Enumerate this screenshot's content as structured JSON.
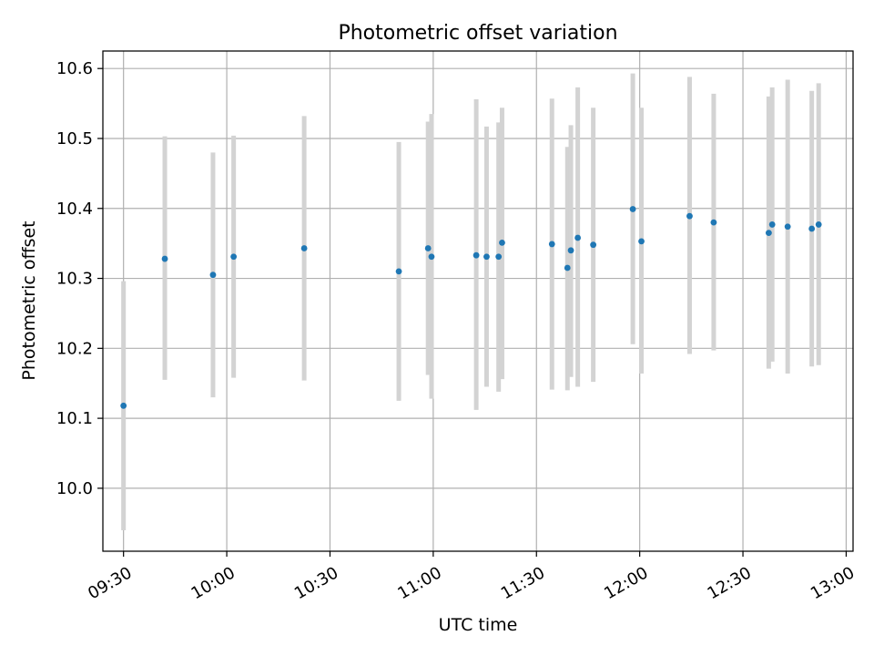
{
  "chart_data": {
    "type": "scatter",
    "title": "Photometric offset variation",
    "xlabel": "UTC time",
    "ylabel": "Photometric offset",
    "x_unit": "time (HH:MM, UTC)",
    "xlim": [
      "09:24",
      "13:02"
    ],
    "ylim": [
      9.91,
      10.625
    ],
    "x_ticks": [
      "09:30",
      "10:00",
      "10:30",
      "11:00",
      "11:30",
      "12:00",
      "12:30",
      "13:00"
    ],
    "y_ticks": [
      "10.0",
      "10.1",
      "10.2",
      "10.3",
      "10.4",
      "10.5",
      "10.6"
    ],
    "y_tick_values": [
      10.0,
      10.1,
      10.2,
      10.3,
      10.4,
      10.5,
      10.6
    ],
    "grid": true,
    "marker_color": "#1f77b4",
    "errorbar_color": "#d3d3d3",
    "points": [
      {
        "x": "09:30:00",
        "y": 10.118,
        "ylow": 9.94,
        "yhigh": 10.296
      },
      {
        "x": "09:42:00",
        "y": 10.328,
        "ylow": 10.155,
        "yhigh": 10.503
      },
      {
        "x": "09:56:00",
        "y": 10.305,
        "ylow": 10.13,
        "yhigh": 10.48
      },
      {
        "x": "10:02:00",
        "y": 10.331,
        "ylow": 10.158,
        "yhigh": 10.504
      },
      {
        "x": "10:22:30",
        "y": 10.343,
        "ylow": 10.154,
        "yhigh": 10.532
      },
      {
        "x": "10:50:00",
        "y": 10.31,
        "ylow": 10.125,
        "yhigh": 10.495
      },
      {
        "x": "10:58:30",
        "y": 10.343,
        "ylow": 10.162,
        "yhigh": 10.524
      },
      {
        "x": "10:59:30",
        "y": 10.331,
        "ylow": 10.128,
        "yhigh": 10.535
      },
      {
        "x": "11:12:30",
        "y": 10.333,
        "ylow": 10.112,
        "yhigh": 10.556
      },
      {
        "x": "11:15:30",
        "y": 10.331,
        "ylow": 10.145,
        "yhigh": 10.517
      },
      {
        "x": "11:19:00",
        "y": 10.331,
        "ylow": 10.138,
        "yhigh": 10.523
      },
      {
        "x": "11:20:00",
        "y": 10.351,
        "ylow": 10.156,
        "yhigh": 10.544
      },
      {
        "x": "11:34:30",
        "y": 10.349,
        "ylow": 10.141,
        "yhigh": 10.557
      },
      {
        "x": "11:39:00",
        "y": 10.315,
        "ylow": 10.14,
        "yhigh": 10.488
      },
      {
        "x": "11:40:00",
        "y": 10.34,
        "ylow": 10.159,
        "yhigh": 10.519
      },
      {
        "x": "11:42:00",
        "y": 10.358,
        "ylow": 10.145,
        "yhigh": 10.573
      },
      {
        "x": "11:46:30",
        "y": 10.348,
        "ylow": 10.152,
        "yhigh": 10.544
      },
      {
        "x": "11:58:00",
        "y": 10.399,
        "ylow": 10.206,
        "yhigh": 10.593
      },
      {
        "x": "12:00:30",
        "y": 10.353,
        "ylow": 10.164,
        "yhigh": 10.544
      },
      {
        "x": "12:14:30",
        "y": 10.389,
        "ylow": 10.192,
        "yhigh": 10.588
      },
      {
        "x": "12:21:30",
        "y": 10.38,
        "ylow": 10.197,
        "yhigh": 10.564
      },
      {
        "x": "12:37:30",
        "y": 10.365,
        "ylow": 10.171,
        "yhigh": 10.56
      },
      {
        "x": "12:38:30",
        "y": 10.377,
        "ylow": 10.181,
        "yhigh": 10.573
      },
      {
        "x": "12:43:00",
        "y": 10.374,
        "ylow": 10.164,
        "yhigh": 10.584
      },
      {
        "x": "12:50:00",
        "y": 10.371,
        "ylow": 10.174,
        "yhigh": 10.568
      },
      {
        "x": "12:52:00",
        "y": 10.377,
        "ylow": 10.176,
        "yhigh": 10.579
      }
    ]
  }
}
